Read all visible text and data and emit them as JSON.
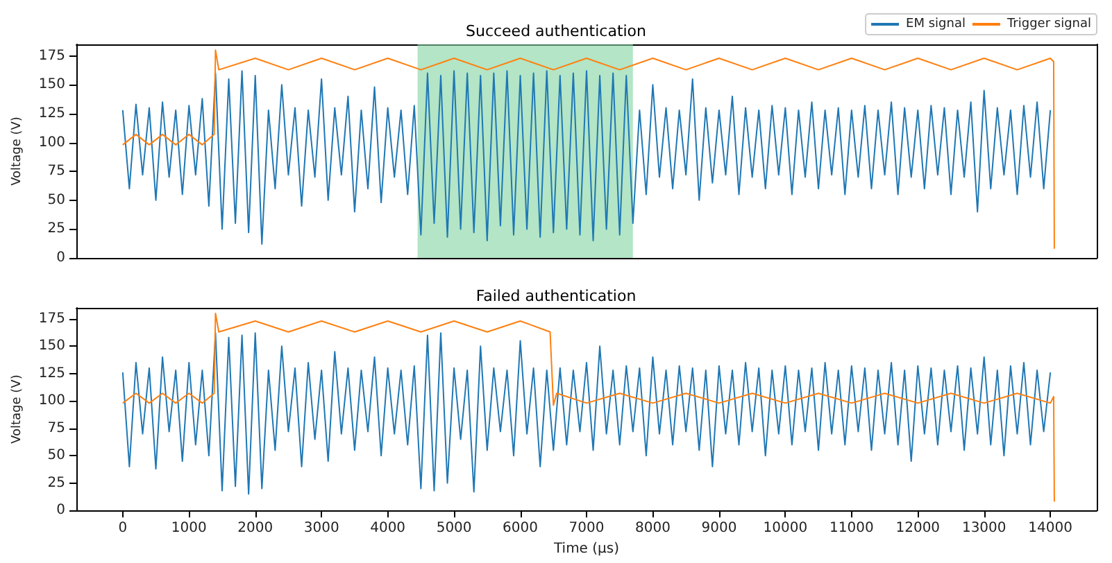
{
  "chart_data": [
    {
      "type": "line",
      "title": "Succeed authentication",
      "ylabel": "Voltage (V)",
      "xlim": [
        -700,
        14700
      ],
      "ylim": [
        0,
        185
      ],
      "yticks": [
        0,
        25,
        50,
        75,
        100,
        125,
        150,
        175
      ],
      "tick_labels": "y",
      "grid": false,
      "legend": "top right",
      "line_style": "solid",
      "bands": [
        {
          "axis": "x",
          "from": 4450,
          "to": 7700,
          "color": "#80d4a0"
        }
      ],
      "series": [
        {
          "name": "EM signal",
          "color": "#1f77b4",
          "x": [
            0,
            100,
            200,
            300,
            400,
            500,
            600,
            700,
            800,
            900,
            1000,
            1100,
            1200,
            1300,
            1400,
            1500,
            1600,
            1700,
            1800,
            1900,
            2000,
            2100,
            2200,
            2300,
            2400,
            2500,
            2600,
            2700,
            2800,
            2900,
            3000,
            3100,
            3200,
            3300,
            3400,
            3500,
            3600,
            3700,
            3800,
            3900,
            4000,
            4100,
            4200,
            4300,
            4400,
            4500,
            4600,
            4700,
            4800,
            4900,
            5000,
            5100,
            5200,
            5300,
            5400,
            5500,
            5600,
            5700,
            5800,
            5900,
            6000,
            6100,
            6200,
            6300,
            6400,
            6500,
            6600,
            6700,
            6800,
            6900,
            7000,
            7100,
            7200,
            7300,
            7400,
            7500,
            7600,
            7700,
            7800,
            7900,
            8000,
            8100,
            8200,
            8300,
            8400,
            8500,
            8600,
            8700,
            8800,
            8900,
            9000,
            9100,
            9200,
            9300,
            9400,
            9500,
            9600,
            9700,
            9800,
            9900,
            10000,
            10100,
            10200,
            10300,
            10400,
            10500,
            10600,
            10700,
            10800,
            10900,
            11000,
            11100,
            11200,
            11300,
            11400,
            11500,
            11600,
            11700,
            11800,
            11900,
            12000,
            12100,
            12200,
            12300,
            12400,
            12500,
            12600,
            12700,
            12800,
            12900,
            13000,
            13100,
            13200,
            13300,
            13400,
            13500,
            13600,
            13700,
            13800,
            13900,
            14000
          ],
          "values": [
            128,
            60,
            133,
            72,
            130,
            50,
            135,
            70,
            128,
            55,
            132,
            72,
            138,
            45,
            160,
            25,
            155,
            30,
            162,
            22,
            158,
            12,
            128,
            60,
            150,
            72,
            130,
            45,
            128,
            70,
            155,
            50,
            130,
            72,
            140,
            40,
            128,
            60,
            148,
            48,
            130,
            70,
            128,
            55,
            132,
            20,
            160,
            30,
            158,
            18,
            162,
            25,
            160,
            22,
            158,
            15,
            160,
            28,
            162,
            20,
            158,
            25,
            160,
            18,
            162,
            22,
            158,
            25,
            160,
            20,
            162,
            15,
            158,
            25,
            160,
            20,
            158,
            30,
            128,
            55,
            150,
            70,
            130,
            60,
            128,
            72,
            155,
            50,
            130,
            65,
            128,
            72,
            140,
            55,
            130,
            70,
            128,
            60,
            132,
            72,
            130,
            55,
            128,
            70,
            135,
            60,
            128,
            72,
            130,
            55,
            128,
            70,
            132,
            60,
            128,
            72,
            135,
            55,
            130,
            70,
            128,
            60,
            132,
            72,
            130,
            55,
            128,
            70,
            135,
            40,
            145,
            60,
            130,
            72,
            128,
            55,
            132,
            70,
            135,
            60,
            128
          ]
        },
        {
          "name": "Trigger signal",
          "color": "#ff7f0e",
          "x": [
            0,
            200,
            400,
            600,
            800,
            1000,
            1200,
            1380,
            1400,
            1450,
            2000,
            2500,
            3000,
            3500,
            4000,
            4500,
            5000,
            5500,
            6000,
            6500,
            7000,
            7500,
            8000,
            8500,
            9000,
            9500,
            10000,
            10500,
            11000,
            11500,
            12000,
            12500,
            13000,
            13500,
            14000,
            14050,
            14060
          ],
          "values": [
            98,
            107,
            98,
            107,
            98,
            107,
            98,
            107,
            180,
            163,
            173,
            163,
            173,
            163,
            173,
            163,
            173,
            163,
            173,
            163,
            173,
            163,
            173,
            163,
            173,
            163,
            173,
            163,
            173,
            163,
            173,
            163,
            173,
            163,
            173,
            170,
            8
          ]
        }
      ]
    },
    {
      "type": "line",
      "title": "Failed authentication",
      "xlabel": "Time (µs)",
      "ylabel": "Voltage (V)",
      "xlim": [
        -700,
        14700
      ],
      "xticks": [
        0,
        1000,
        2000,
        3000,
        4000,
        5000,
        6000,
        7000,
        8000,
        9000,
        10000,
        11000,
        12000,
        13000,
        14000
      ],
      "ylim": [
        0,
        185
      ],
      "yticks": [
        0,
        25,
        50,
        75,
        100,
        125,
        150,
        175
      ],
      "grid": false,
      "legend": false,
      "line_style": "solid",
      "series": [
        {
          "color": "#1f77b4",
          "x": [
            0,
            100,
            200,
            300,
            400,
            500,
            600,
            700,
            800,
            900,
            1000,
            1100,
            1200,
            1300,
            1400,
            1500,
            1600,
            1700,
            1800,
            1900,
            2000,
            2100,
            2200,
            2300,
            2400,
            2500,
            2600,
            2700,
            2800,
            2900,
            3000,
            3100,
            3200,
            3300,
            3400,
            3500,
            3600,
            3700,
            3800,
            3900,
            4000,
            4100,
            4200,
            4300,
            4400,
            4500,
            4600,
            4700,
            4800,
            4900,
            5000,
            5100,
            5200,
            5300,
            5400,
            5500,
            5600,
            5700,
            5800,
            5900,
            6000,
            6100,
            6200,
            6300,
            6400,
            6500,
            6600,
            6700,
            6800,
            6900,
            7000,
            7100,
            7200,
            7300,
            7400,
            7500,
            7600,
            7700,
            7800,
            7900,
            8000,
            8100,
            8200,
            8300,
            8400,
            8500,
            8600,
            8700,
            8800,
            8900,
            9000,
            9100,
            9200,
            9300,
            9400,
            9500,
            9600,
            9700,
            9800,
            9900,
            10000,
            10100,
            10200,
            10300,
            10400,
            10500,
            10600,
            10700,
            10800,
            10900,
            11000,
            11100,
            11200,
            11300,
            11400,
            11500,
            11600,
            11700,
            11800,
            11900,
            12000,
            12100,
            12200,
            12300,
            12400,
            12500,
            12600,
            12700,
            12800,
            12900,
            13000,
            13100,
            13200,
            13300,
            13400,
            13500,
            13600,
            13700,
            13800,
            13900,
            14000
          ],
          "values": [
            126,
            40,
            135,
            70,
            130,
            38,
            140,
            72,
            128,
            45,
            135,
            60,
            128,
            50,
            162,
            18,
            158,
            22,
            160,
            15,
            162,
            20,
            128,
            55,
            150,
            72,
            130,
            40,
            135,
            65,
            128,
            45,
            145,
            70,
            130,
            55,
            128,
            72,
            140,
            50,
            130,
            70,
            128,
            60,
            132,
            20,
            160,
            18,
            162,
            25,
            130,
            65,
            128,
            17,
            150,
            55,
            130,
            72,
            128,
            50,
            155,
            70,
            130,
            40,
            128,
            55,
            130,
            60,
            128,
            72,
            135,
            55,
            150,
            70,
            128,
            60,
            132,
            72,
            130,
            50,
            140,
            70,
            128,
            60,
            132,
            72,
            130,
            55,
            128,
            40,
            132,
            70,
            128,
            60,
            135,
            72,
            130,
            50,
            128,
            70,
            132,
            60,
            128,
            72,
            130,
            55,
            135,
            70,
            128,
            60,
            132,
            72,
            130,
            55,
            128,
            70,
            135,
            60,
            128,
            45,
            132,
            70,
            130,
            60,
            128,
            72,
            132,
            55,
            130,
            70,
            140,
            60,
            128,
            50,
            132,
            70,
            135,
            60,
            128,
            72,
            126
          ]
        },
        {
          "color": "#ff7f0e",
          "x": [
            0,
            200,
            400,
            600,
            800,
            1000,
            1200,
            1380,
            1400,
            1450,
            2000,
            2500,
            3000,
            3500,
            4000,
            4500,
            5000,
            5500,
            6000,
            6450,
            6500,
            6550,
            7000,
            7500,
            8000,
            8500,
            9000,
            9500,
            10000,
            10500,
            11000,
            11500,
            12000,
            12500,
            13000,
            13500,
            14000,
            14050,
            14060
          ],
          "values": [
            98,
            107,
            98,
            107,
            98,
            107,
            98,
            107,
            180,
            163,
            173,
            163,
            173,
            163,
            173,
            163,
            173,
            163,
            173,
            163,
            96,
            107,
            98,
            107,
            98,
            107,
            98,
            107,
            98,
            107,
            98,
            107,
            98,
            107,
            98,
            107,
            98,
            104,
            8
          ]
        }
      ]
    }
  ]
}
